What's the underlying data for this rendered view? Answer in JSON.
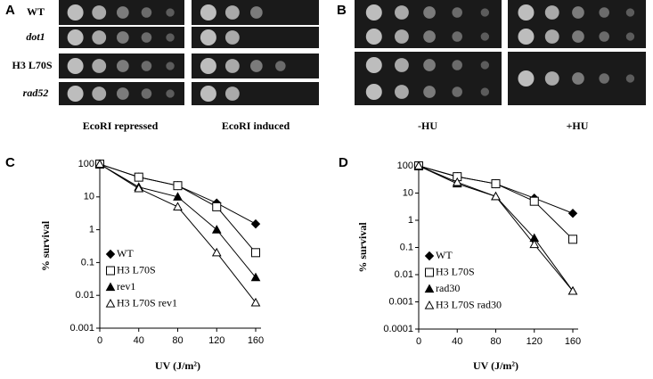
{
  "panels": {
    "A": {
      "label": "A",
      "rows": [
        "WT",
        "dot1",
        "H3 L70S",
        "rad52"
      ],
      "captions": [
        "EcoRI repressed",
        "EcoRI induced"
      ]
    },
    "B": {
      "label": "B",
      "captions": [
        "-HU",
        "+HU"
      ]
    }
  },
  "chart_data": [
    {
      "type": "line",
      "label": "C",
      "xlabel": "UV (J/m²)",
      "ylabel": "% survival",
      "log_y": true,
      "x": [
        0,
        40,
        80,
        120,
        160
      ],
      "xlim": [
        0,
        160
      ],
      "xticks": [
        0,
        40,
        80,
        120,
        160
      ],
      "ylim": [
        0.001,
        100
      ],
      "yticks": [
        0.001,
        0.01,
        0.1,
        1,
        10,
        100
      ],
      "series": [
        {
          "name": "WT",
          "color": "#000000",
          "marker": "diamond",
          "filled": true,
          "values": [
            100,
            40,
            22,
            6.5,
            1.5
          ]
        },
        {
          "name": "H3 L70S",
          "color": "#000000",
          "marker": "square",
          "filled": false,
          "values": [
            100,
            40,
            22,
            5,
            0.2
          ]
        },
        {
          "name": "rev1",
          "color": "#000000",
          "marker": "triangle",
          "filled": true,
          "values": [
            100,
            20,
            10,
            1,
            0.035
          ]
        },
        {
          "name": "H3 L70S rev1",
          "color": "#000000",
          "marker": "triangle",
          "filled": false,
          "values": [
            100,
            18,
            5,
            0.2,
            0.006
          ]
        }
      ]
    },
    {
      "type": "line",
      "label": "D",
      "xlabel": "UV (J/m²)",
      "ylabel": "% survival",
      "log_y": true,
      "x": [
        0,
        40,
        80,
        120,
        160
      ],
      "xlim": [
        0,
        160
      ],
      "xticks": [
        0,
        40,
        80,
        120,
        160
      ],
      "ylim": [
        0.0001,
        100
      ],
      "yticks": [
        0.0001,
        0.001,
        0.01,
        0.1,
        1,
        10,
        100
      ],
      "series": [
        {
          "name": "WT",
          "color": "#000000",
          "marker": "diamond",
          "filled": true,
          "values": [
            100,
            40,
            22,
            6.5,
            1.8
          ]
        },
        {
          "name": "H3 L70S",
          "color": "#000000",
          "marker": "square",
          "filled": false,
          "values": [
            100,
            40,
            22,
            5,
            0.2
          ]
        },
        {
          "name": "rad30",
          "color": "#000000",
          "marker": "triangle",
          "filled": true,
          "values": [
            100,
            22,
            7.5,
            0.22,
            0.0025
          ]
        },
        {
          "name": "H3 L70S rad30",
          "color": "#000000",
          "marker": "triangle",
          "filled": false,
          "values": [
            100,
            25,
            7.5,
            0.13,
            0.0025
          ]
        }
      ]
    }
  ]
}
